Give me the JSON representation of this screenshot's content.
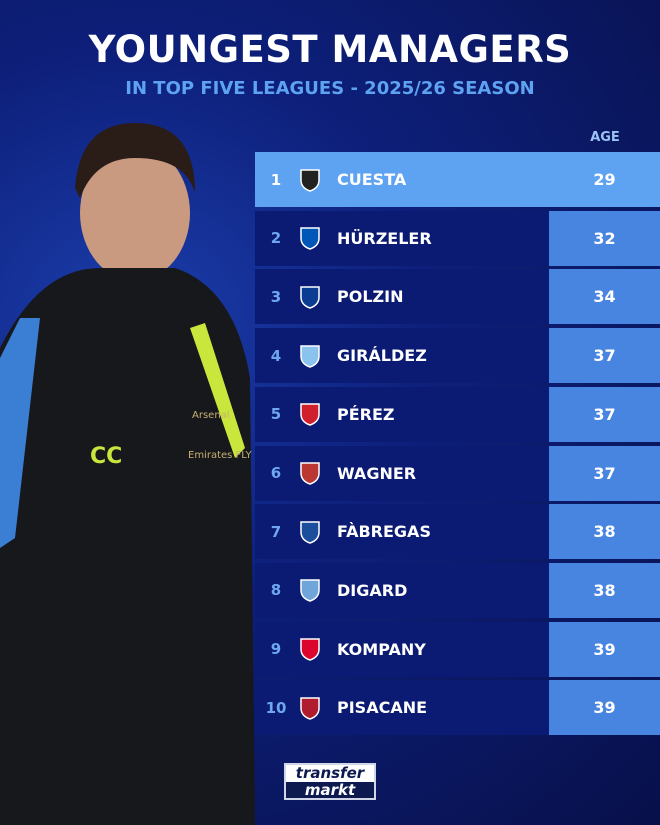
{
  "header": {
    "title": "YOUNGEST MANAGERS",
    "subtitle": "IN TOP FIVE LEAGUES - 2025/26 SEASON"
  },
  "table": {
    "age_header": "AGE",
    "rows": [
      {
        "rank": "1",
        "name": "CUESTA",
        "age": "29",
        "crest": "parma-crest-icon",
        "color": "#222222"
      },
      {
        "rank": "2",
        "name": "HÜRZELER",
        "age": "32",
        "crest": "brighton-crest-icon",
        "color": "#0057b8"
      },
      {
        "rank": "3",
        "name": "POLZIN",
        "age": "34",
        "crest": "hamburg-crest-icon",
        "color": "#0a3d91"
      },
      {
        "rank": "4",
        "name": "GIRÁLDEZ",
        "age": "37",
        "crest": "celta-crest-icon",
        "color": "#8ac3ee"
      },
      {
        "rank": "5",
        "name": "PÉREZ",
        "age": "37",
        "crest": "rayo-crest-icon",
        "color": "#d0202e"
      },
      {
        "rank": "6",
        "name": "WAGNER",
        "age": "37",
        "crest": "augsburg-crest-icon",
        "color": "#ba3733"
      },
      {
        "rank": "7",
        "name": "FÀBREGAS",
        "age": "38",
        "crest": "como-crest-icon",
        "color": "#1d4e9e"
      },
      {
        "rank": "8",
        "name": "DIGARD",
        "age": "38",
        "crest": "le-havre-crest-icon",
        "color": "#6fa5d9"
      },
      {
        "rank": "9",
        "name": "KOMPANY",
        "age": "39",
        "crest": "bayern-crest-icon",
        "color": "#dc052d"
      },
      {
        "rank": "10",
        "name": "PISACANE",
        "age": "39",
        "crest": "cagliari-crest-icon",
        "color": "#b01c2e"
      }
    ]
  },
  "photo": {
    "initials": "CC",
    "brand": "Arsenal",
    "sponsor": "Emirates FLY BETTER"
  },
  "footer": {
    "logo_line1": "transfer",
    "logo_line2": "markt"
  }
}
